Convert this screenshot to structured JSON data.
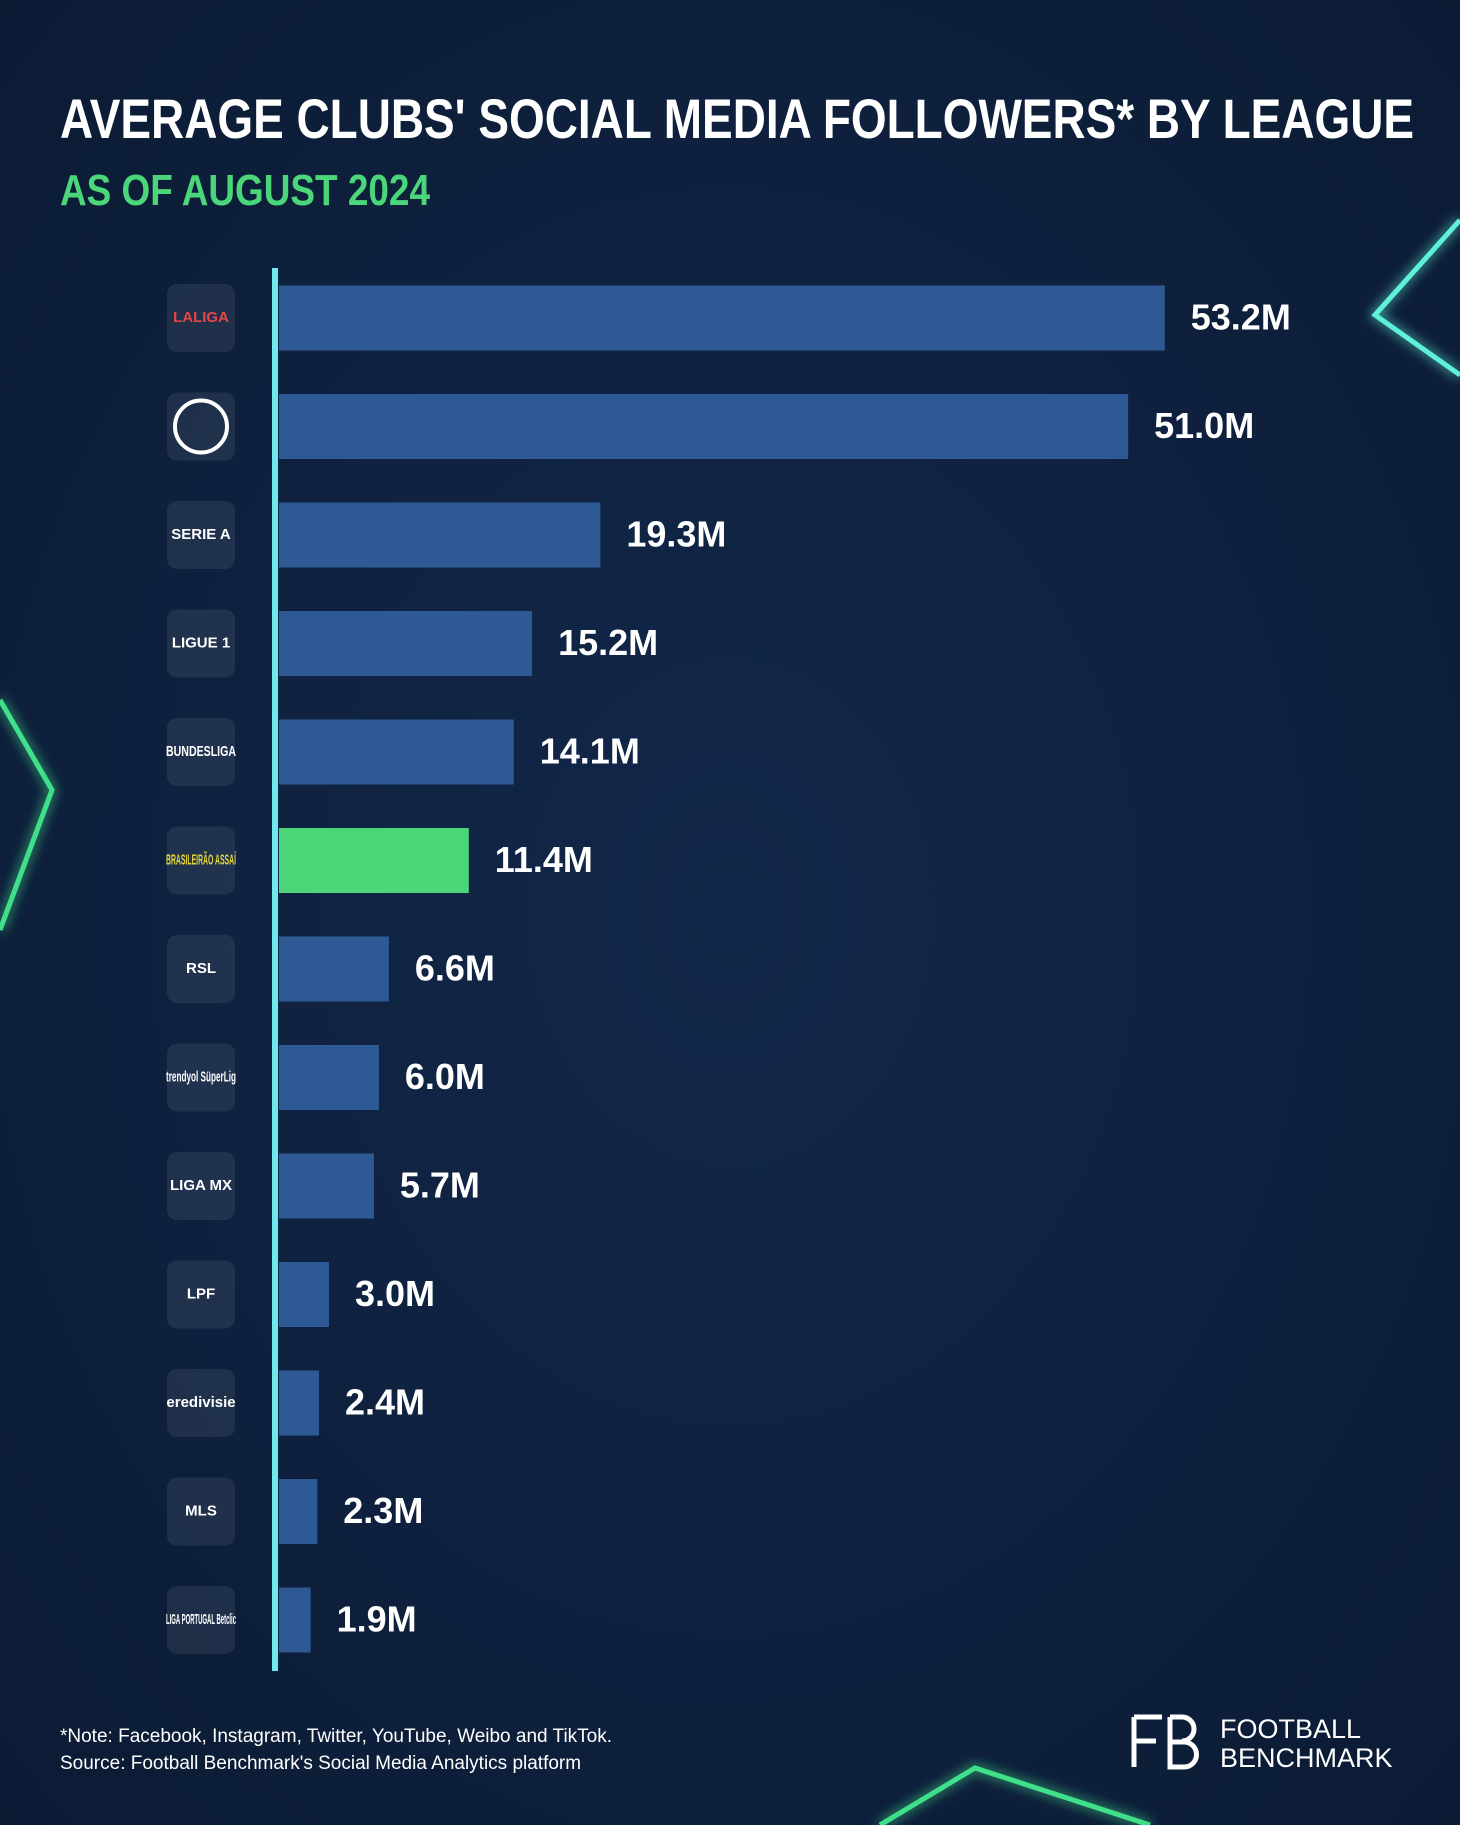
{
  "chart_data": {
    "type": "bar",
    "orientation": "horizontal",
    "title": "AVERAGE CLUBS' SOCIAL MEDIA FOLLOWERS* BY LEAGUE",
    "subtitle": "AS OF AUGUST 2024",
    "categories": [
      "LALIGA",
      null,
      "SERIE A",
      "LIGUE 1",
      "BUNDESLIGA",
      "BRASILEIRÃO ASSAÍ",
      "RSL",
      "trendyol SüperLig",
      "LIGA MX",
      "LPF",
      "eredivisie",
      "MLS",
      "LIGA PORTUGAL Betclic"
    ],
    "values": [
      53.2,
      51.0,
      19.3,
      15.2,
      14.1,
      11.4,
      6.6,
      6.0,
      5.7,
      3.0,
      2.4,
      2.3,
      1.9
    ],
    "value_labels": [
      "53.2M",
      "51.0M",
      "19.3M",
      "15.2M",
      "14.1M",
      "11.4M",
      "6.6M",
      "6.0M",
      "5.7M",
      "3.0M",
      "2.4M",
      "2.3M",
      "1.9M"
    ],
    "colors": [
      "#2d5a95",
      "#2d5a95",
      "#2d5a95",
      "#2d5a95",
      "#2d5a95",
      "#4cd67a",
      "#2d5a95",
      "#2d5a95",
      "#2d5a95",
      "#2d5a95",
      "#2d5a95",
      "#2d5a95",
      "#2d5a95"
    ],
    "note": "*Note: Facebook, Instagram, Twitter, YouTube, Weibo and TikTok.",
    "source": "Source: Football Benchmark's Social Media Analytics platform",
    "brand": [
      "FOOTBALL",
      "BENCHMARK"
    ]
  }
}
